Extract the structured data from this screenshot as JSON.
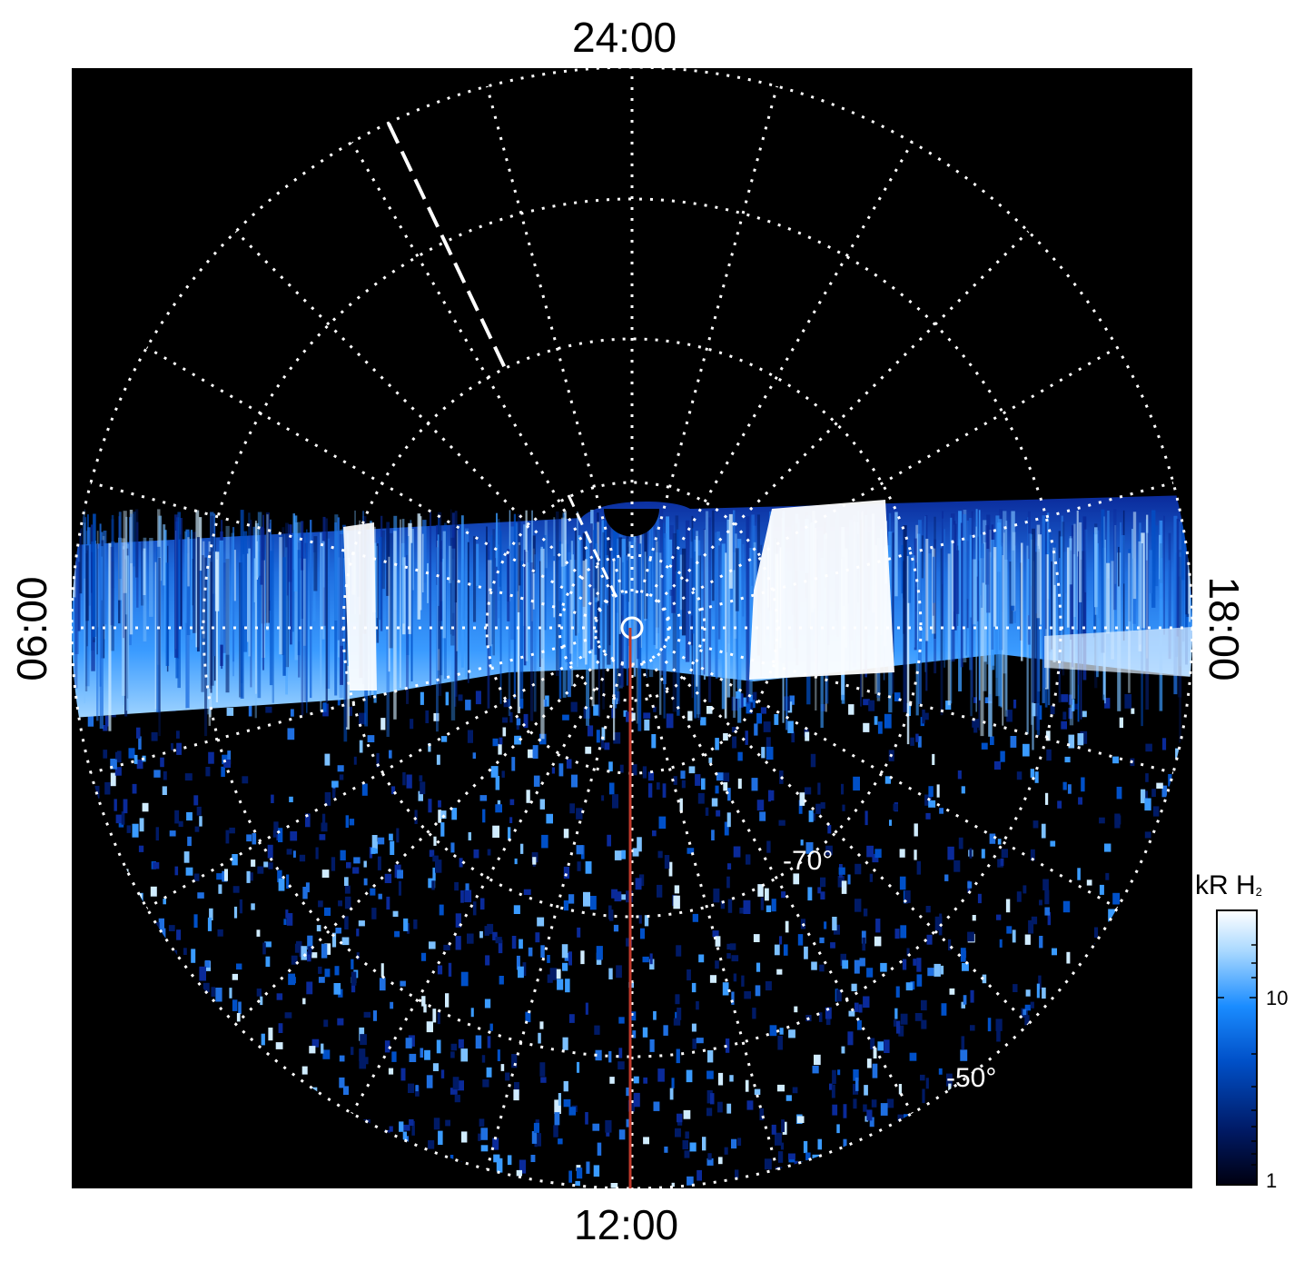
{
  "map_labels": {
    "top": "24:00",
    "bottom": "12:00",
    "left": "06:00",
    "right": "18:00"
  },
  "latitude_labels": [
    "-70°",
    "-50°"
  ],
  "colorbar": {
    "title": "kR H",
    "subscript": "2",
    "ticks": [
      "10",
      "1"
    ],
    "scale": "log",
    "colors": [
      "#000010",
      "#001a66",
      "#0050c8",
      "#1a8cff",
      "#a8d8ff",
      "#ffffff"
    ]
  },
  "colors": {
    "background": "#000000",
    "grid": "#ffffff",
    "meridian_line": "#c0392b",
    "aurora_core": "#ffffff",
    "aurora_mid": "#3a9bff",
    "aurora_low": "#0a2a9a"
  }
}
